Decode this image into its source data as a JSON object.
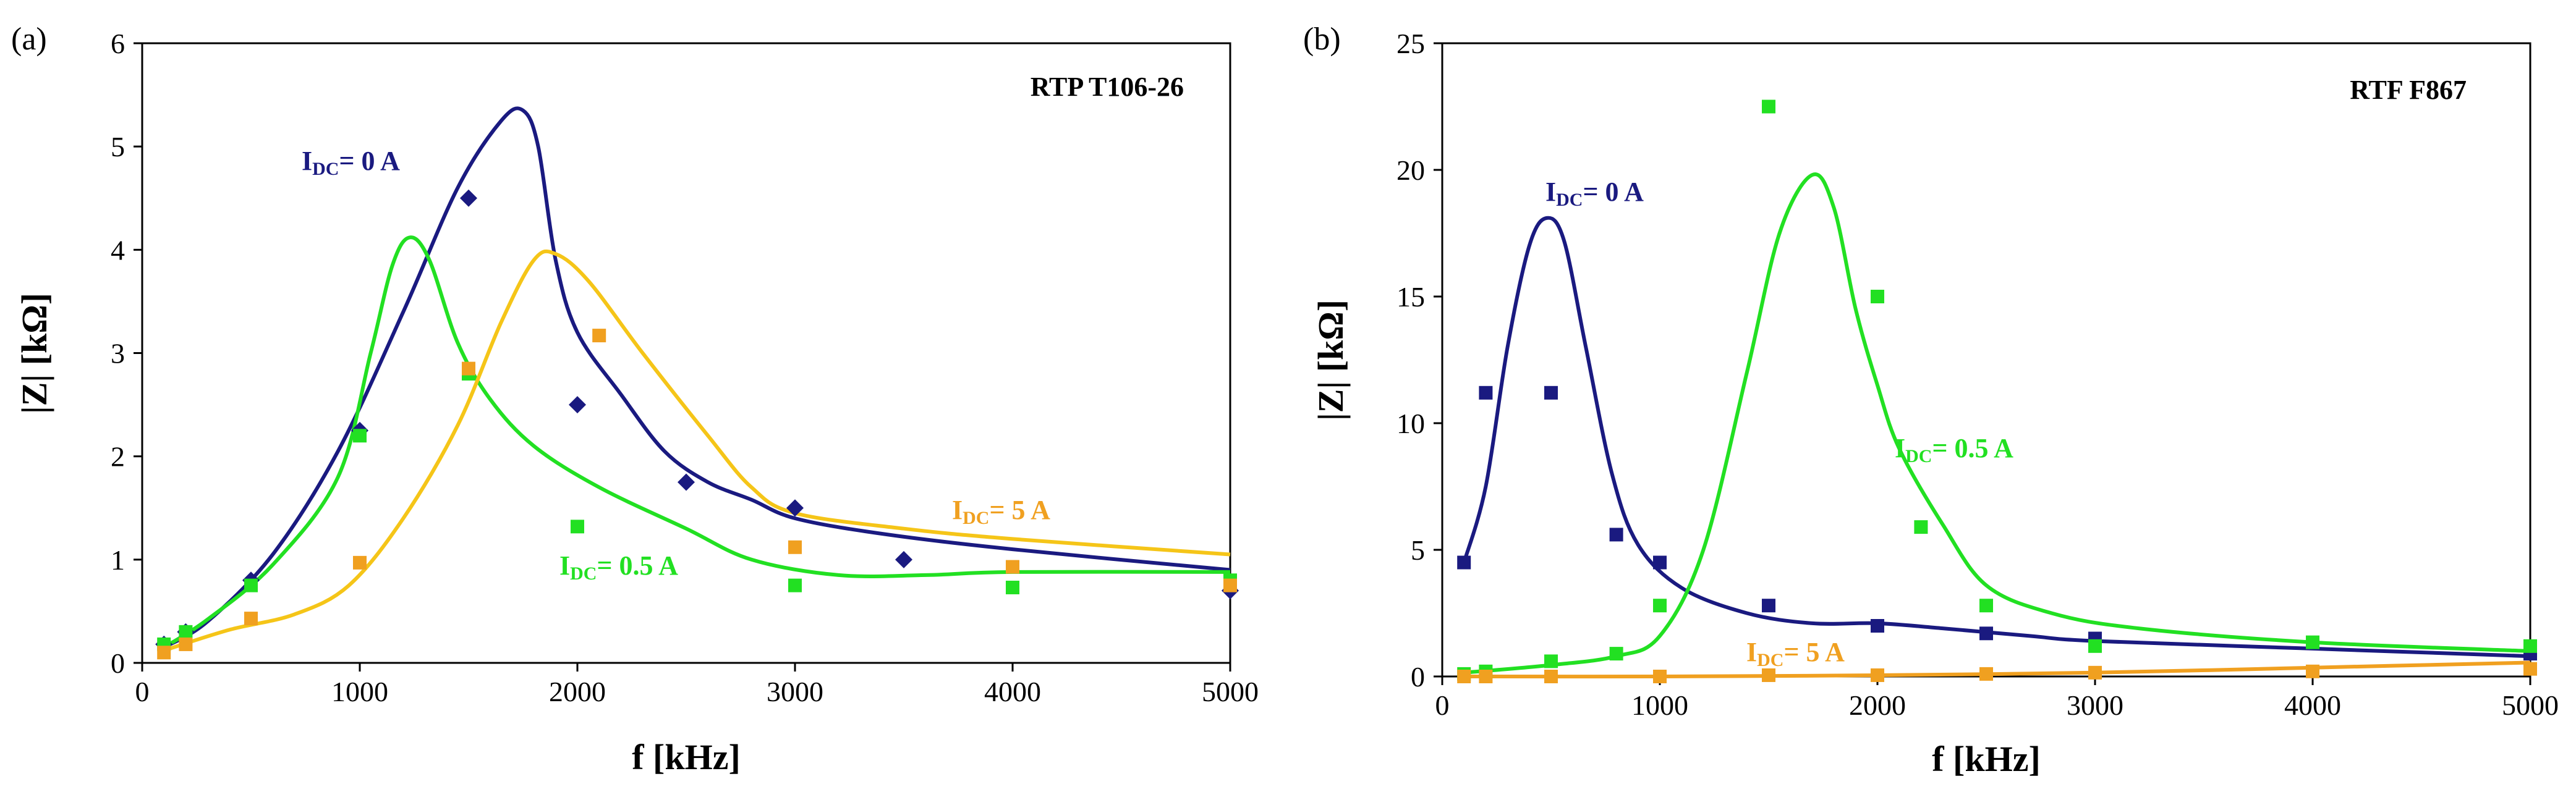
{
  "chart_data": [
    {
      "type": "scatter",
      "panel_label": "(a)",
      "title": "RTP T106-26",
      "xlabel": "f [kHz]",
      "ylabel": "|Z| [kΩ]",
      "xlim": [
        0,
        5000
      ],
      "ylim": [
        0,
        6
      ],
      "xticks": [
        "0",
        "1000",
        "2000",
        "3000",
        "4000",
        "5000"
      ],
      "yticks": [
        "0",
        "1",
        "2",
        "3",
        "4",
        "5",
        "6"
      ],
      "grid": false,
      "series": [
        {
          "label_main": "I",
          "label_sub": "DC",
          "label_rest": "= 0 A",
          "color": "#1a1a80",
          "marker": "diamond",
          "points": [
            [
              100,
              0.18
            ],
            [
              200,
              0.3
            ],
            [
              500,
              0.8
            ],
            [
              1000,
              2.25
            ],
            [
              1500,
              4.5
            ],
            [
              2000,
              2.5
            ],
            [
              2500,
              1.75
            ],
            [
              3000,
              1.5
            ],
            [
              3500,
              1.0
            ],
            [
              5000,
              0.7
            ]
          ],
          "fit": [
            [
              100,
              0.15
            ],
            [
              300,
              0.4
            ],
            [
              600,
              1.05
            ],
            [
              900,
              2.05
            ],
            [
              1200,
              3.4
            ],
            [
              1450,
              4.6
            ],
            [
              1650,
              5.25
            ],
            [
              1750,
              5.35
            ],
            [
              1820,
              5.0
            ],
            [
              1900,
              3.9
            ],
            [
              2000,
              3.2
            ],
            [
              2200,
              2.6
            ],
            [
              2400,
              2.05
            ],
            [
              2600,
              1.75
            ],
            [
              2800,
              1.58
            ],
            [
              3000,
              1.4
            ],
            [
              3400,
              1.25
            ],
            [
              4000,
              1.1
            ],
            [
              5000,
              0.9
            ]
          ]
        },
        {
          "label_main": "I",
          "label_sub": "DC",
          "label_rest": "= 0.5 A",
          "color": "#22e022",
          "marker": "square",
          "points": [
            [
              100,
              0.18
            ],
            [
              200,
              0.3
            ],
            [
              500,
              0.75
            ],
            [
              1000,
              2.2
            ],
            [
              1500,
              2.8
            ],
            [
              2000,
              1.32
            ],
            [
              3000,
              0.75
            ],
            [
              4000,
              0.73
            ],
            [
              5000,
              0.8
            ]
          ],
          "fit": [
            [
              100,
              0.15
            ],
            [
              300,
              0.42
            ],
            [
              600,
              0.95
            ],
            [
              900,
              1.8
            ],
            [
              1050,
              3.0
            ],
            [
              1150,
              3.85
            ],
            [
              1230,
              4.12
            ],
            [
              1320,
              3.9
            ],
            [
              1450,
              3.1
            ],
            [
              1600,
              2.55
            ],
            [
              1800,
              2.1
            ],
            [
              2100,
              1.7
            ],
            [
              2500,
              1.3
            ],
            [
              2800,
              1.0
            ],
            [
              3200,
              0.85
            ],
            [
              3600,
              0.85
            ],
            [
              4000,
              0.88
            ],
            [
              5000,
              0.88
            ]
          ]
        },
        {
          "label_main": "I",
          "label_sub": "DC",
          "label_rest": "= 5 A",
          "color": "#f0a020",
          "line_color": "#f5c518",
          "marker": "square",
          "points": [
            [
              100,
              0.1
            ],
            [
              200,
              0.18
            ],
            [
              500,
              0.43
            ],
            [
              1000,
              0.97
            ],
            [
              1500,
              2.85
            ],
            [
              2100,
              3.17
            ],
            [
              3000,
              1.12
            ],
            [
              4000,
              0.93
            ],
            [
              5000,
              0.75
            ]
          ],
          "fit": [
            [
              100,
              0.12
            ],
            [
              400,
              0.32
            ],
            [
              700,
              0.47
            ],
            [
              950,
              0.75
            ],
            [
              1200,
              1.4
            ],
            [
              1450,
              2.3
            ],
            [
              1650,
              3.3
            ],
            [
              1800,
              3.9
            ],
            [
              1900,
              3.96
            ],
            [
              2050,
              3.7
            ],
            [
              2300,
              3.0
            ],
            [
              2600,
              2.2
            ],
            [
              2800,
              1.7
            ],
            [
              3000,
              1.45
            ],
            [
              3500,
              1.3
            ],
            [
              4000,
              1.2
            ],
            [
              5000,
              1.05
            ]
          ]
        }
      ]
    },
    {
      "type": "scatter",
      "panel_label": "(b)",
      "title": "RTF F867",
      "xlabel": "f [kHz]",
      "ylabel": "|Z| [kΩ]",
      "xlim": [
        0,
        5000
      ],
      "ylim": [
        0,
        25
      ],
      "xticks": [
        "0",
        "1000",
        "2000",
        "3000",
        "4000",
        "5000"
      ],
      "yticks": [
        "0",
        "5",
        "10",
        "15",
        "20",
        "25"
      ],
      "grid": false,
      "series": [
        {
          "label_main": "I",
          "label_sub": "DC",
          "label_rest": "= 0 A",
          "color": "#1a1a80",
          "marker": "square",
          "points": [
            [
              100,
              4.5
            ],
            [
              200,
              11.2
            ],
            [
              500,
              11.2
            ],
            [
              800,
              5.6
            ],
            [
              1000,
              4.5
            ],
            [
              1500,
              2.8
            ],
            [
              2000,
              2.0
            ],
            [
              2500,
              1.7
            ],
            [
              3000,
              1.5
            ],
            [
              5000,
              0.9
            ]
          ],
          "fit": [
            [
              100,
              4.5
            ],
            [
              200,
              7.5
            ],
            [
              300,
              13.0
            ],
            [
              400,
              17.0
            ],
            [
              480,
              18.1
            ],
            [
              560,
              17.2
            ],
            [
              660,
              13.0
            ],
            [
              780,
              8.0
            ],
            [
              900,
              5.2
            ],
            [
              1100,
              3.5
            ],
            [
              1400,
              2.5
            ],
            [
              1700,
              2.1
            ],
            [
              2000,
              2.1
            ],
            [
              2300,
              1.9
            ],
            [
              2700,
              1.6
            ],
            [
              3000,
              1.4
            ],
            [
              4000,
              1.1
            ],
            [
              5000,
              0.8
            ]
          ]
        },
        {
          "label_main": "I",
          "label_sub": "DC",
          "label_rest": "= 0.5 A",
          "color": "#22e022",
          "marker": "square",
          "points": [
            [
              100,
              0.1
            ],
            [
              200,
              0.2
            ],
            [
              500,
              0.6
            ],
            [
              800,
              0.9
            ],
            [
              1000,
              2.8
            ],
            [
              1500,
              22.5
            ],
            [
              2000,
              15.0
            ],
            [
              2200,
              5.9
            ],
            [
              2500,
              2.8
            ],
            [
              3000,
              1.2
            ],
            [
              4000,
              1.35
            ],
            [
              5000,
              1.2
            ]
          ],
          "fit": [
            [
              100,
              0.15
            ],
            [
              500,
              0.45
            ],
            [
              800,
              0.8
            ],
            [
              1000,
              1.6
            ],
            [
              1200,
              5.0
            ],
            [
              1400,
              12.0
            ],
            [
              1550,
              17.5
            ],
            [
              1700,
              19.8
            ],
            [
              1800,
              18.5
            ],
            [
              1900,
              14.5
            ],
            [
              2000,
              11.5
            ],
            [
              2100,
              9.0
            ],
            [
              2300,
              6.0
            ],
            [
              2500,
              3.6
            ],
            [
              2800,
              2.5
            ],
            [
              3200,
              1.9
            ],
            [
              4000,
              1.35
            ],
            [
              5000,
              1.0
            ]
          ]
        },
        {
          "label_main": "I",
          "label_sub": "DC",
          "label_rest": "= 5 A",
          "color": "#f0a020",
          "line_color": "#f0a020",
          "marker": "square",
          "points": [
            [
              100,
              0.0
            ],
            [
              200,
              0.0
            ],
            [
              500,
              0.0
            ],
            [
              1000,
              0.0
            ],
            [
              1500,
              0.05
            ],
            [
              2000,
              0.05
            ],
            [
              2500,
              0.1
            ],
            [
              3000,
              0.15
            ],
            [
              4000,
              0.2
            ],
            [
              5000,
              0.3
            ]
          ],
          "fit": [
            [
              100,
              0.0
            ],
            [
              1000,
              0.0
            ],
            [
              2000,
              0.05
            ],
            [
              3000,
              0.15
            ],
            [
              4000,
              0.35
            ],
            [
              5000,
              0.55
            ]
          ]
        }
      ]
    }
  ]
}
